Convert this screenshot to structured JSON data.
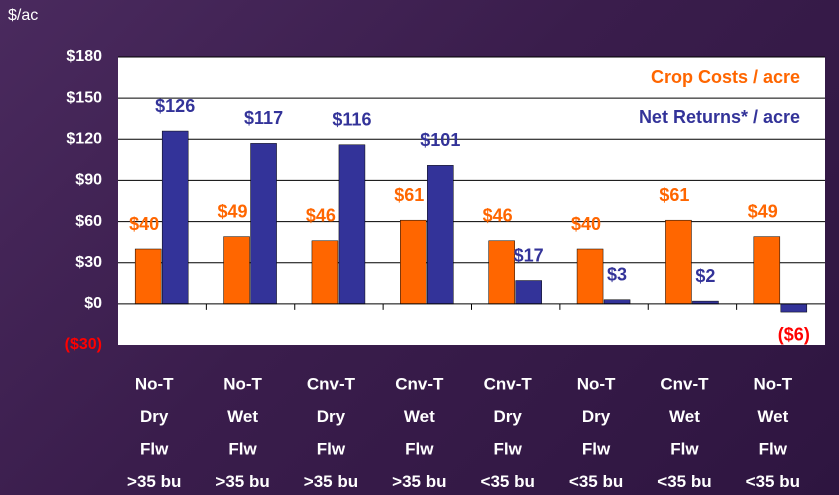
{
  "chart_data": {
    "type": "bar",
    "ylabel": "$/ac",
    "categories": [
      [
        "No-T",
        "Dry",
        "Flw",
        ">35 bu"
      ],
      [
        "No-T",
        "Wet",
        "Flw",
        ">35 bu"
      ],
      [
        "Cnv-T",
        "Dry",
        "Flw",
        ">35 bu"
      ],
      [
        "Cnv-T",
        "Wet",
        "Flw",
        ">35 bu"
      ],
      [
        "Cnv-T",
        "Dry",
        "Flw",
        "<35 bu"
      ],
      [
        "No-T",
        "Dry",
        "Flw",
        "<35 bu"
      ],
      [
        "Cnv-T",
        "Wet",
        "Flw",
        "<35 bu"
      ],
      [
        "No-T",
        "Wet",
        "Flw",
        "<35 bu"
      ]
    ],
    "series": [
      {
        "name": "Crop Costs / acre",
        "color": "#ff6600",
        "values": [
          40,
          49,
          46,
          61,
          46,
          40,
          61,
          49
        ],
        "value_labels": [
          "$40",
          "$49",
          "$46",
          "$61",
          "$46",
          "$40",
          "$61",
          "$49"
        ]
      },
      {
        "name": "Net Returns* / acre",
        "color": "#333399",
        "values": [
          126,
          117,
          116,
          101,
          17,
          3,
          2,
          -6
        ],
        "value_labels": [
          "$126",
          "$117",
          "$116",
          "$101",
          "$17",
          "$3",
          "$2",
          "($6)"
        ]
      }
    ],
    "ylim": [
      -30,
      180
    ],
    "yticks": [
      {
        "value": 180,
        "label": "$180"
      },
      {
        "value": 150,
        "label": "$150"
      },
      {
        "value": 120,
        "label": "$120"
      },
      {
        "value": 90,
        "label": "$90"
      },
      {
        "value": 60,
        "label": "$60"
      },
      {
        "value": 30,
        "label": "$30"
      },
      {
        "value": 0,
        "label": "$0"
      },
      {
        "value": -30,
        "label": "($30)"
      }
    ],
    "grid": true,
    "legend": "upper right",
    "negative_color": "#ff0000"
  }
}
